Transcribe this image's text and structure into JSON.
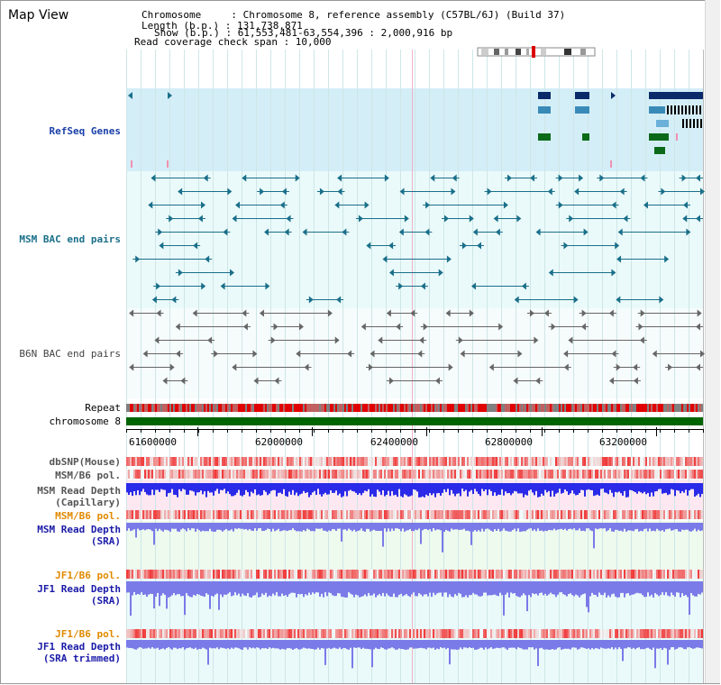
{
  "header": {
    "title": "Map View",
    "info_lines": [
      "Chromosome     : Chromosome 8, reference assembly (C57BL/6J) (Build 37)",
      "Length (b.p.) : 131,738,871",
      "Show (b.p.) : 61,553,481-63,554,396 : 2,000,916 bp",
      "Read coverage check span : 10,000"
    ]
  },
  "tracks": [
    {
      "id": "refseq",
      "label": "RefSeq Genes",
      "color": "#1a3fa8"
    },
    {
      "id": "msm_bac",
      "label": "MSM BAC end pairs",
      "color": "#1a6f8a"
    },
    {
      "id": "b6n_bac",
      "label": "B6N BAC end pairs",
      "color": "#444444"
    },
    {
      "id": "repeat",
      "label": "Repeat",
      "color": "#000000"
    },
    {
      "id": "chromosome",
      "label": "chromosome 8",
      "color": "#000000"
    },
    {
      "id": "dbsnp",
      "label": "dbSNP(Mouse)",
      "color": "#555555"
    },
    {
      "id": "msm_b6_pol1",
      "label": "MSM/B6 pol.",
      "color": "#555555"
    },
    {
      "id": "msm_depth_cap",
      "label": "MSM Read Depth\n(Capillary)",
      "color": "#555555"
    },
    {
      "id": "msm_b6_pol2",
      "label": "MSM/B6 pol.",
      "color": "#e08a00"
    },
    {
      "id": "msm_depth_sra",
      "label": "MSM Read Depth\n(SRA)",
      "color": "#1a1aa8"
    },
    {
      "id": "jf1_b6_pol1",
      "label": "JF1/B6 pol.",
      "color": "#e08a00"
    },
    {
      "id": "jf1_depth_sra",
      "label": "JF1 Read Depth\n(SRA)",
      "color": "#1a1aa8"
    },
    {
      "id": "jf1_b6_pol2",
      "label": "JF1/B6 pol.",
      "color": "#e08a00"
    },
    {
      "id": "jf1_depth_trim",
      "label": "JF1 Read Depth\n(SRA trimmed)",
      "color": "#1a1aa8"
    }
  ],
  "axis": {
    "ticks": [
      "61600000",
      "62000000",
      "62400000",
      "62800000",
      "63200000"
    ]
  },
  "colors": {
    "refseq_bg": "#d4eef8",
    "pane_bg": "#eafafa",
    "gene_dark": "#0a2a6a",
    "gene_mid": "#3a8ab8",
    "gene_light": "#6ab0d8",
    "gene_green": "#0a6a1a",
    "msm_feature": "#1a6f8a",
    "b6n_feature": "#666666",
    "chrom_bar": "#006400",
    "depth_blue": "#2a2ae8",
    "depth_sra": "#7a7ae8"
  }
}
